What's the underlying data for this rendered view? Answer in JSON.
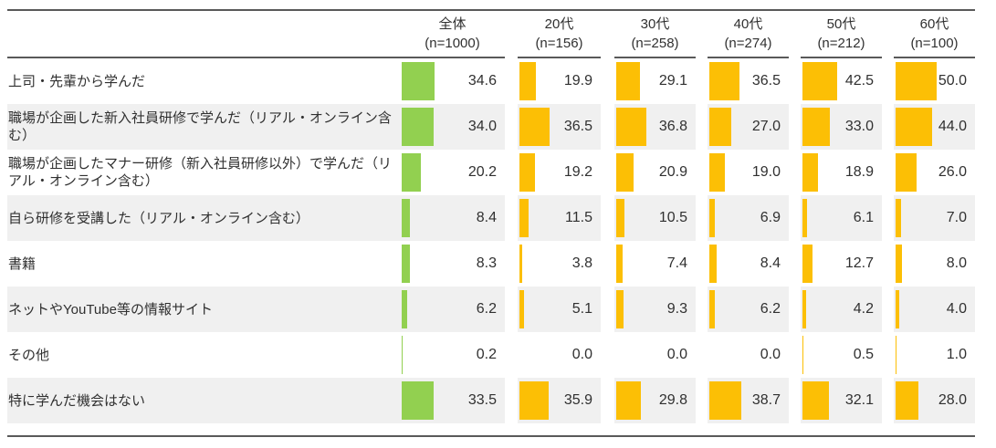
{
  "colors": {
    "total_bar": "#92D050",
    "age_bar": "#FCBF05",
    "row_alt_bg": "#F0F0F0",
    "rule_line": "#595959",
    "text": "#303030"
  },
  "table": {
    "columns": [
      {
        "label": "全体",
        "n_label": "(n=1000)"
      },
      {
        "label": "20代",
        "n_label": "(n=156)"
      },
      {
        "label": "30代",
        "n_label": "(n=258)"
      },
      {
        "label": "40代",
        "n_label": "(n=274)"
      },
      {
        "label": "50代",
        "n_label": "(n=212)"
      },
      {
        "label": "60代",
        "n_label": "(n=100)"
      }
    ],
    "rows": [
      {
        "label": "上司・先輩から学んだ",
        "values": [
          34.6,
          19.9,
          29.1,
          36.5,
          42.5,
          50.0
        ]
      },
      {
        "label": "職場が企画した新入社員研修で学んだ（リアル・オンライン含む）",
        "values": [
          34.0,
          36.5,
          36.8,
          27.0,
          33.0,
          44.0
        ]
      },
      {
        "label": "職場が企画したマナー研修（新入社員研修以外）で学んだ（リアル・オンライン含む）",
        "values": [
          20.2,
          19.2,
          20.9,
          19.0,
          18.9,
          26.0
        ]
      },
      {
        "label": "自ら研修を受講した（リアル・オンライン含む）",
        "values": [
          8.4,
          11.5,
          10.5,
          6.9,
          6.1,
          7.0
        ]
      },
      {
        "label": "書籍",
        "values": [
          8.3,
          3.8,
          7.4,
          8.4,
          12.7,
          8.0
        ]
      },
      {
        "label": "ネットやYouTube等の情報サイト",
        "values": [
          6.2,
          5.1,
          9.3,
          6.2,
          4.2,
          4.0
        ]
      },
      {
        "label": "その他",
        "values": [
          0.2,
          0.0,
          0.0,
          0.0,
          0.5,
          1.0
        ]
      },
      {
        "label": "特に学んだ機会はない",
        "values": [
          33.5,
          35.9,
          29.8,
          38.7,
          32.1,
          28.0
        ]
      }
    ]
  },
  "chart_data": {
    "type": "bar",
    "orientation": "horizontal",
    "categories": [
      "上司・先輩から学んだ",
      "職場が企画した新入社員研修で学んだ（リアル・オンライン含む）",
      "職場が企画したマナー研修（新入社員研修以外）で学んだ（リアル・オンライン含む）",
      "自ら研修を受講した（リアル・オンライン含む）",
      "書籍",
      "ネットやYouTube等の情報サイト",
      "その他",
      "特に学んだ機会はない"
    ],
    "series": [
      {
        "name": "全体 (n=1000)",
        "values": [
          34.6,
          34.0,
          20.2,
          8.4,
          8.3,
          6.2,
          0.2,
          33.5
        ]
      },
      {
        "name": "20代 (n=156)",
        "values": [
          19.9,
          36.5,
          19.2,
          11.5,
          3.8,
          5.1,
          0.0,
          35.9
        ]
      },
      {
        "name": "30代 (n=258)",
        "values": [
          29.1,
          36.8,
          20.9,
          10.5,
          7.4,
          9.3,
          0.0,
          29.8
        ]
      },
      {
        "name": "40代 (n=274)",
        "values": [
          36.5,
          27.0,
          19.0,
          6.9,
          8.4,
          6.2,
          0.0,
          38.7
        ]
      },
      {
        "name": "50代 (n=212)",
        "values": [
          42.5,
          33.0,
          18.9,
          6.1,
          12.7,
          4.2,
          0.5,
          32.1
        ]
      },
      {
        "name": "60代 (n=100)",
        "values": [
          50.0,
          44.0,
          26.0,
          7.0,
          8.0,
          4.0,
          1.0,
          28.0
        ]
      }
    ],
    "xlim": [
      0,
      50
    ],
    "grid": false,
    "legend_position": "none",
    "value_labels": "one-decimal, right-aligned in each cell"
  }
}
